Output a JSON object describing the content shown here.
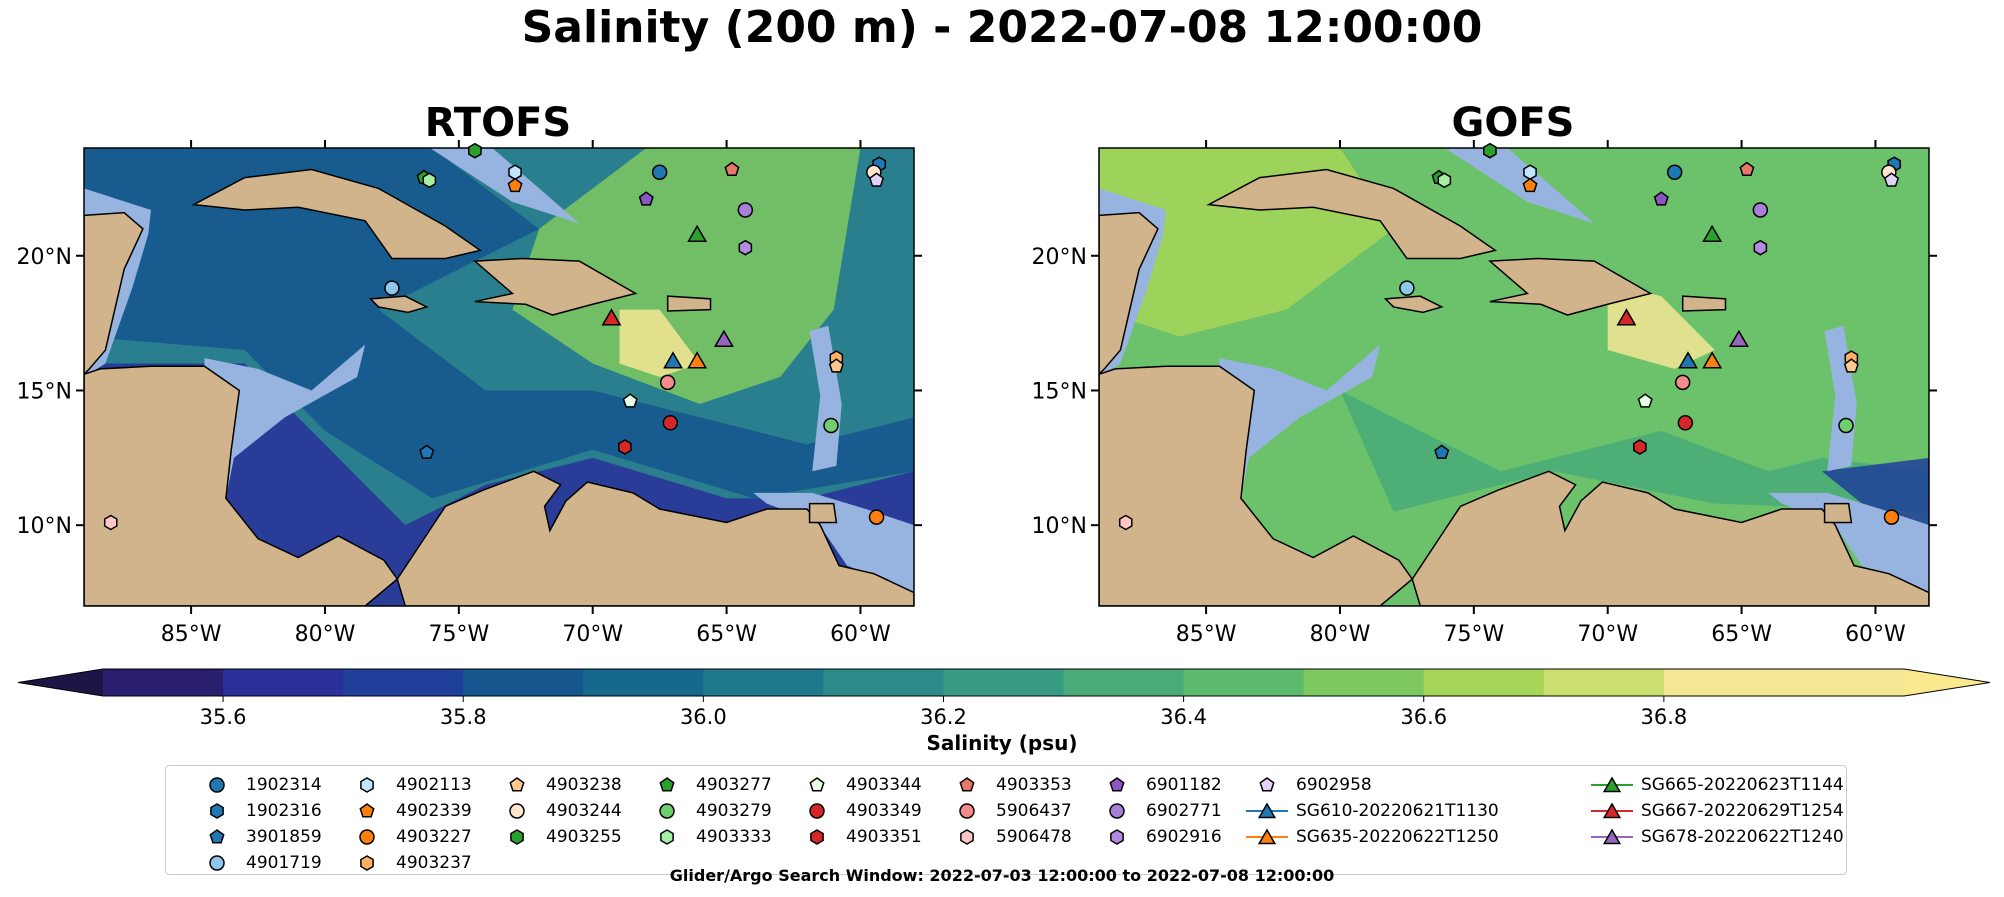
{
  "title": "Salinity (200 m) - 2022-07-08 12:00:00",
  "panels": [
    {
      "title": "RTOFS",
      "ocean_palette": "rtofs"
    },
    {
      "title": "GOFS",
      "ocean_palette": "gofs"
    }
  ],
  "footnote": "Glider/Argo Search Window: 2022-07-03 12:00:00 to 2022-07-08 12:00:00",
  "colors": {
    "land": "#d2b48c",
    "shelf": "#97b4e0",
    "rtofs_ocean": "#2a7f8e",
    "gofs_ocean": "#6cc26a"
  },
  "chart_data": {
    "type": "heatmap",
    "variable": "Salinity",
    "depth": "200 m",
    "valid_time": "2022-07-08 12:00:00",
    "map_extent": {
      "lon": [
        -89,
        -58
      ],
      "lat": [
        7,
        24
      ]
    },
    "x_ticks": [
      {
        "value": -85,
        "label": "85°W"
      },
      {
        "value": -80,
        "label": "80°W"
      },
      {
        "value": -75,
        "label": "75°W"
      },
      {
        "value": -70,
        "label": "70°W"
      },
      {
        "value": -65,
        "label": "65°W"
      },
      {
        "value": -60,
        "label": "60°W"
      }
    ],
    "y_ticks": [
      {
        "value": 10,
        "label": "10°N"
      },
      {
        "value": 15,
        "label": "15°N"
      },
      {
        "value": 20,
        "label": "20°N"
      }
    ],
    "colorbar": {
      "label": "Salinity (psu)",
      "range": [
        35.5,
        37.0
      ],
      "step": 0.1,
      "extend": "both",
      "ticks": [
        35.6,
        35.8,
        36.0,
        36.2,
        36.4,
        36.6,
        36.8
      ],
      "tick_labels": [
        "35.6",
        "35.8",
        "36.0",
        "36.2",
        "36.4",
        "36.6",
        "36.8"
      ],
      "colors": [
        "#2a1e6e",
        "#29309a",
        "#203f9a",
        "#15568f",
        "#16698d",
        "#1f798d",
        "#2b8a8a",
        "#379a83",
        "#48ab78",
        "#5cba6d",
        "#7ec95f",
        "#a6d657",
        "#cadf70",
        "#f3e694"
      ],
      "under_color": "#1e1547",
      "over_color": "#fbe98f"
    },
    "platforms": [
      {
        "id": "1902314",
        "kind": "argo",
        "marker": "circle",
        "color": "#1f77b4",
        "lon": -67.5,
        "lat": 23.1
      },
      {
        "id": "1902316",
        "kind": "argo",
        "marker": "hexagon",
        "color": "#1f77b4",
        "lon": -59.3,
        "lat": 23.4
      },
      {
        "id": "3901859",
        "kind": "argo",
        "marker": "pentagon",
        "color": "#1f77b4",
        "lon": -76.2,
        "lat": 12.7
      },
      {
        "id": "4901719",
        "kind": "argo",
        "marker": "circle",
        "color": "#8fc7ec",
        "lon": -77.5,
        "lat": 18.8
      },
      {
        "id": "4902113",
        "kind": "argo",
        "marker": "hexagon",
        "color": "#bfe6ff",
        "lon": -72.9,
        "lat": 23.1
      },
      {
        "id": "4902339",
        "kind": "argo",
        "marker": "pentagon",
        "color": "#ff7f0e",
        "lon": -72.9,
        "lat": 22.6
      },
      {
        "id": "4903227",
        "kind": "argo",
        "marker": "circle",
        "color": "#ff7f0e",
        "lon": -59.4,
        "lat": 10.3
      },
      {
        "id": "4903237",
        "kind": "argo",
        "marker": "hexagon",
        "color": "#ffb066",
        "lon": -60.9,
        "lat": 16.2
      },
      {
        "id": "4903238",
        "kind": "argo",
        "marker": "pentagon",
        "color": "#ffc88f",
        "lon": -60.9,
        "lat": 15.9
      },
      {
        "id": "4903244",
        "kind": "argo",
        "marker": "circle",
        "color": "#ffe6cc",
        "lon": -59.5,
        "lat": 23.1
      },
      {
        "id": "4903255",
        "kind": "argo",
        "marker": "hexagon",
        "color": "#2ca02c",
        "lon": -74.4,
        "lat": 23.9
      },
      {
        "id": "4903277",
        "kind": "argo",
        "marker": "pentagon",
        "color": "#2ca02c",
        "lon": -76.3,
        "lat": 22.9
      },
      {
        "id": "4903279",
        "kind": "argo",
        "marker": "circle",
        "color": "#6fcf6f",
        "lon": -61.1,
        "lat": 13.7
      },
      {
        "id": "4903333",
        "kind": "argo",
        "marker": "hexagon",
        "color": "#a6f0a6",
        "lon": -76.1,
        "lat": 22.8
      },
      {
        "id": "4903344",
        "kind": "argo",
        "marker": "pentagon",
        "color": "#e6ffe6",
        "lon": -68.6,
        "lat": 14.6
      },
      {
        "id": "4903349",
        "kind": "argo",
        "marker": "circle",
        "color": "#d62728",
        "lon": -67.1,
        "lat": 13.8
      },
      {
        "id": "4903351",
        "kind": "argo",
        "marker": "hexagon",
        "color": "#d62728",
        "lon": -68.8,
        "lat": 12.9
      },
      {
        "id": "4903353",
        "kind": "argo",
        "marker": "pentagon",
        "color": "#e8796a",
        "lon": -64.8,
        "lat": 23.2
      },
      {
        "id": "5906437",
        "kind": "argo",
        "marker": "circle",
        "color": "#f28c8c",
        "lon": -67.2,
        "lat": 15.3
      },
      {
        "id": "5906478",
        "kind": "argo",
        "marker": "hexagon",
        "color": "#ffc6c6",
        "lon": -88.0,
        "lat": 10.1
      },
      {
        "id": "6901182",
        "kind": "argo",
        "marker": "pentagon",
        "color": "#8c55c4",
        "lon": -68.0,
        "lat": 22.1
      },
      {
        "id": "6902771",
        "kind": "argo",
        "marker": "circle",
        "color": "#a67fd6",
        "lon": -64.3,
        "lat": 21.7
      },
      {
        "id": "6902916",
        "kind": "argo",
        "marker": "hexagon",
        "color": "#b48be0",
        "lon": -64.3,
        "lat": 20.3
      },
      {
        "id": "6902958",
        "kind": "argo",
        "marker": "pentagon",
        "color": "#e3d2f7",
        "lon": -59.4,
        "lat": 22.8
      },
      {
        "id": "SG610-20220621T1130",
        "kind": "glider",
        "marker": "triangle",
        "color": "#1f77b4",
        "lon": -67.0,
        "lat": 16.1
      },
      {
        "id": "SG635-20220622T1250",
        "kind": "glider",
        "marker": "triangle",
        "color": "#ff7f0e",
        "lon": -66.1,
        "lat": 16.1
      },
      {
        "id": "SG665-20220623T1144",
        "kind": "glider",
        "marker": "triangle",
        "color": "#2ca02c",
        "lon": -66.1,
        "lat": 20.8
      },
      {
        "id": "SG667-20220629T1254",
        "kind": "glider",
        "marker": "triangle",
        "color": "#d62728",
        "lon": -69.3,
        "lat": 17.7
      },
      {
        "id": "SG678-20220622T1240",
        "kind": "glider",
        "marker": "triangle",
        "color": "#9467bd",
        "lon": -65.1,
        "lat": 16.9
      }
    ]
  }
}
